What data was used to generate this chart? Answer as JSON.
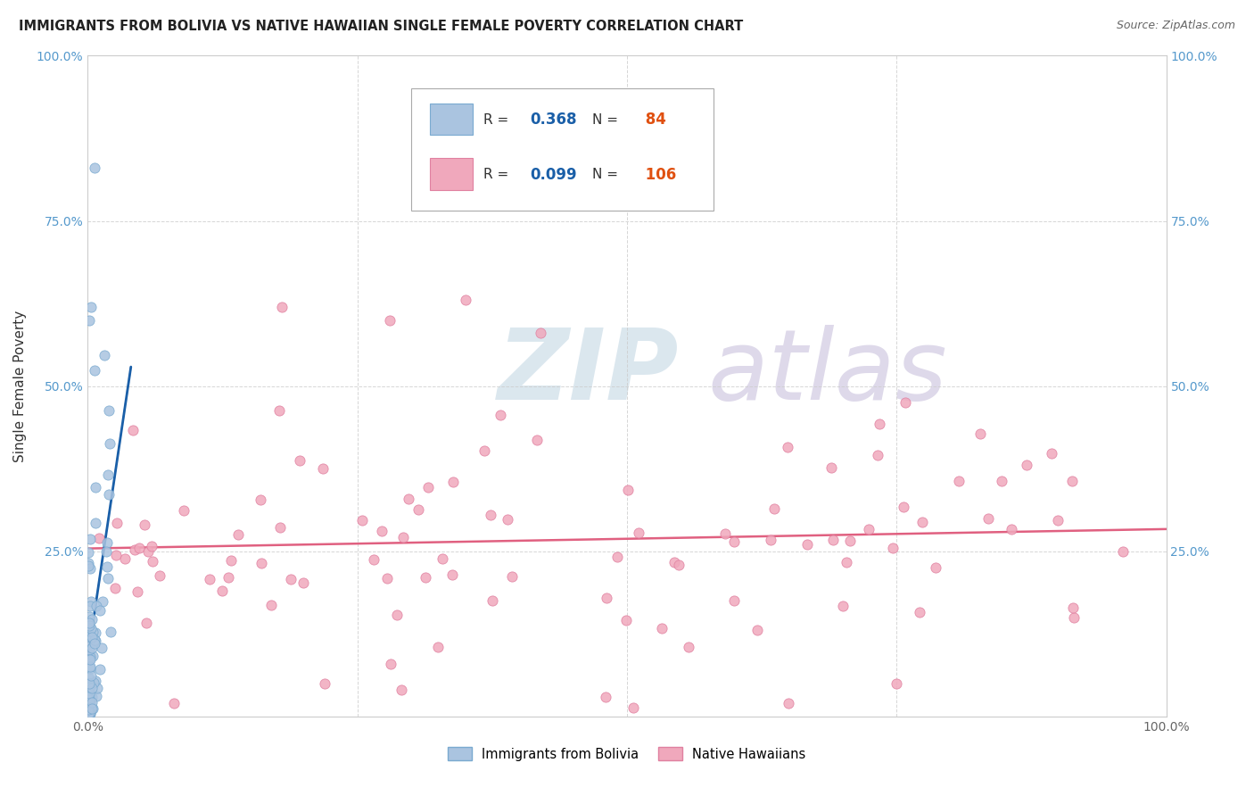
{
  "title": "IMMIGRANTS FROM BOLIVIA VS NATIVE HAWAIIAN SINGLE FEMALE POVERTY CORRELATION CHART",
  "source": "Source: ZipAtlas.com",
  "ylabel": "Single Female Poverty",
  "xlim": [
    0,
    1
  ],
  "ylim": [
    0,
    1
  ],
  "grid_color": "#cccccc",
  "background_color": "#ffffff",
  "bolivia_color": "#aac4e0",
  "bolivia_edge": "#7aaad0",
  "hawaii_color": "#f0a8bc",
  "hawaii_edge": "#e080a0",
  "bolivia_trend_color": "#5599cc",
  "bolivia_solid_color": "#1a5fa8",
  "hawaii_trend_color": "#e06080",
  "bolivia_R": 0.368,
  "bolivia_N": 84,
  "hawaii_R": 0.099,
  "hawaii_N": 106,
  "legend_R_color": "#1a5fa8",
  "legend_N_color": "#e05010",
  "watermark_zip_color": "#ccdde8",
  "watermark_atlas_color": "#c8c0dc"
}
